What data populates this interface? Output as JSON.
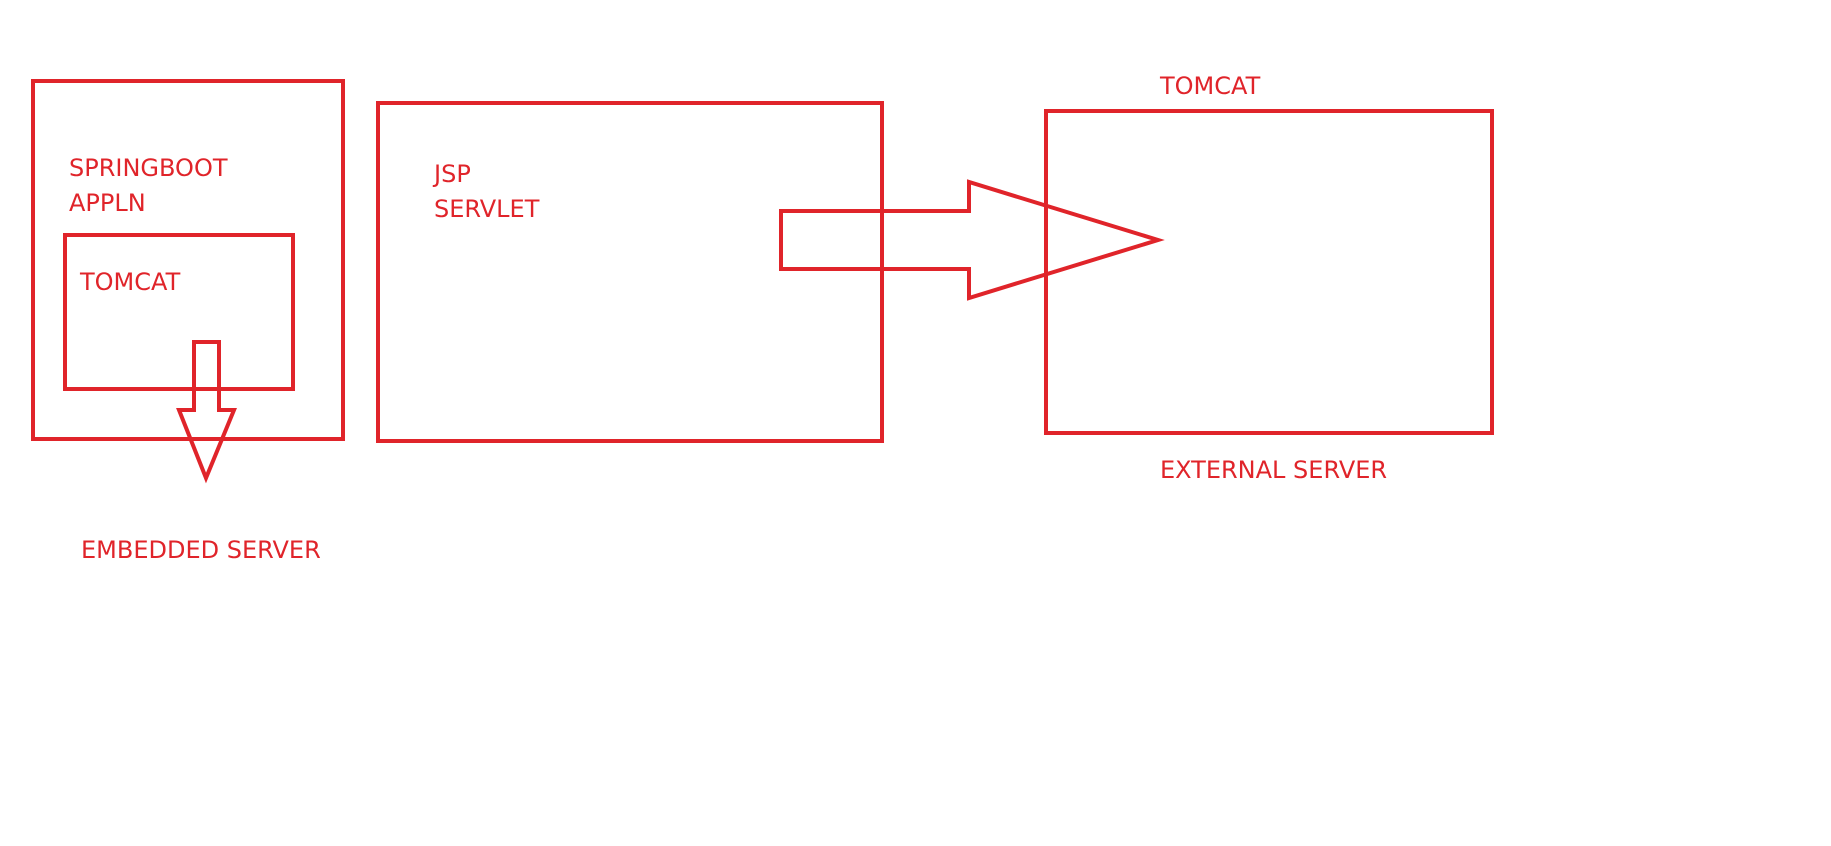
{
  "colors": {
    "stroke": "#e0242a",
    "text": "#e0242a",
    "background": "#ffffff"
  },
  "labels": {
    "springboot_line1": "SPRINGBOOT",
    "springboot_line2": "APPLN",
    "embedded_tomcat": "TOMCAT",
    "embedded_server": "EMBEDDED SERVER",
    "jsp": "JSP",
    "servlet": "SERVLET",
    "external_tomcat": "TOMCAT",
    "external_server": "EXTERNAL SERVER"
  }
}
